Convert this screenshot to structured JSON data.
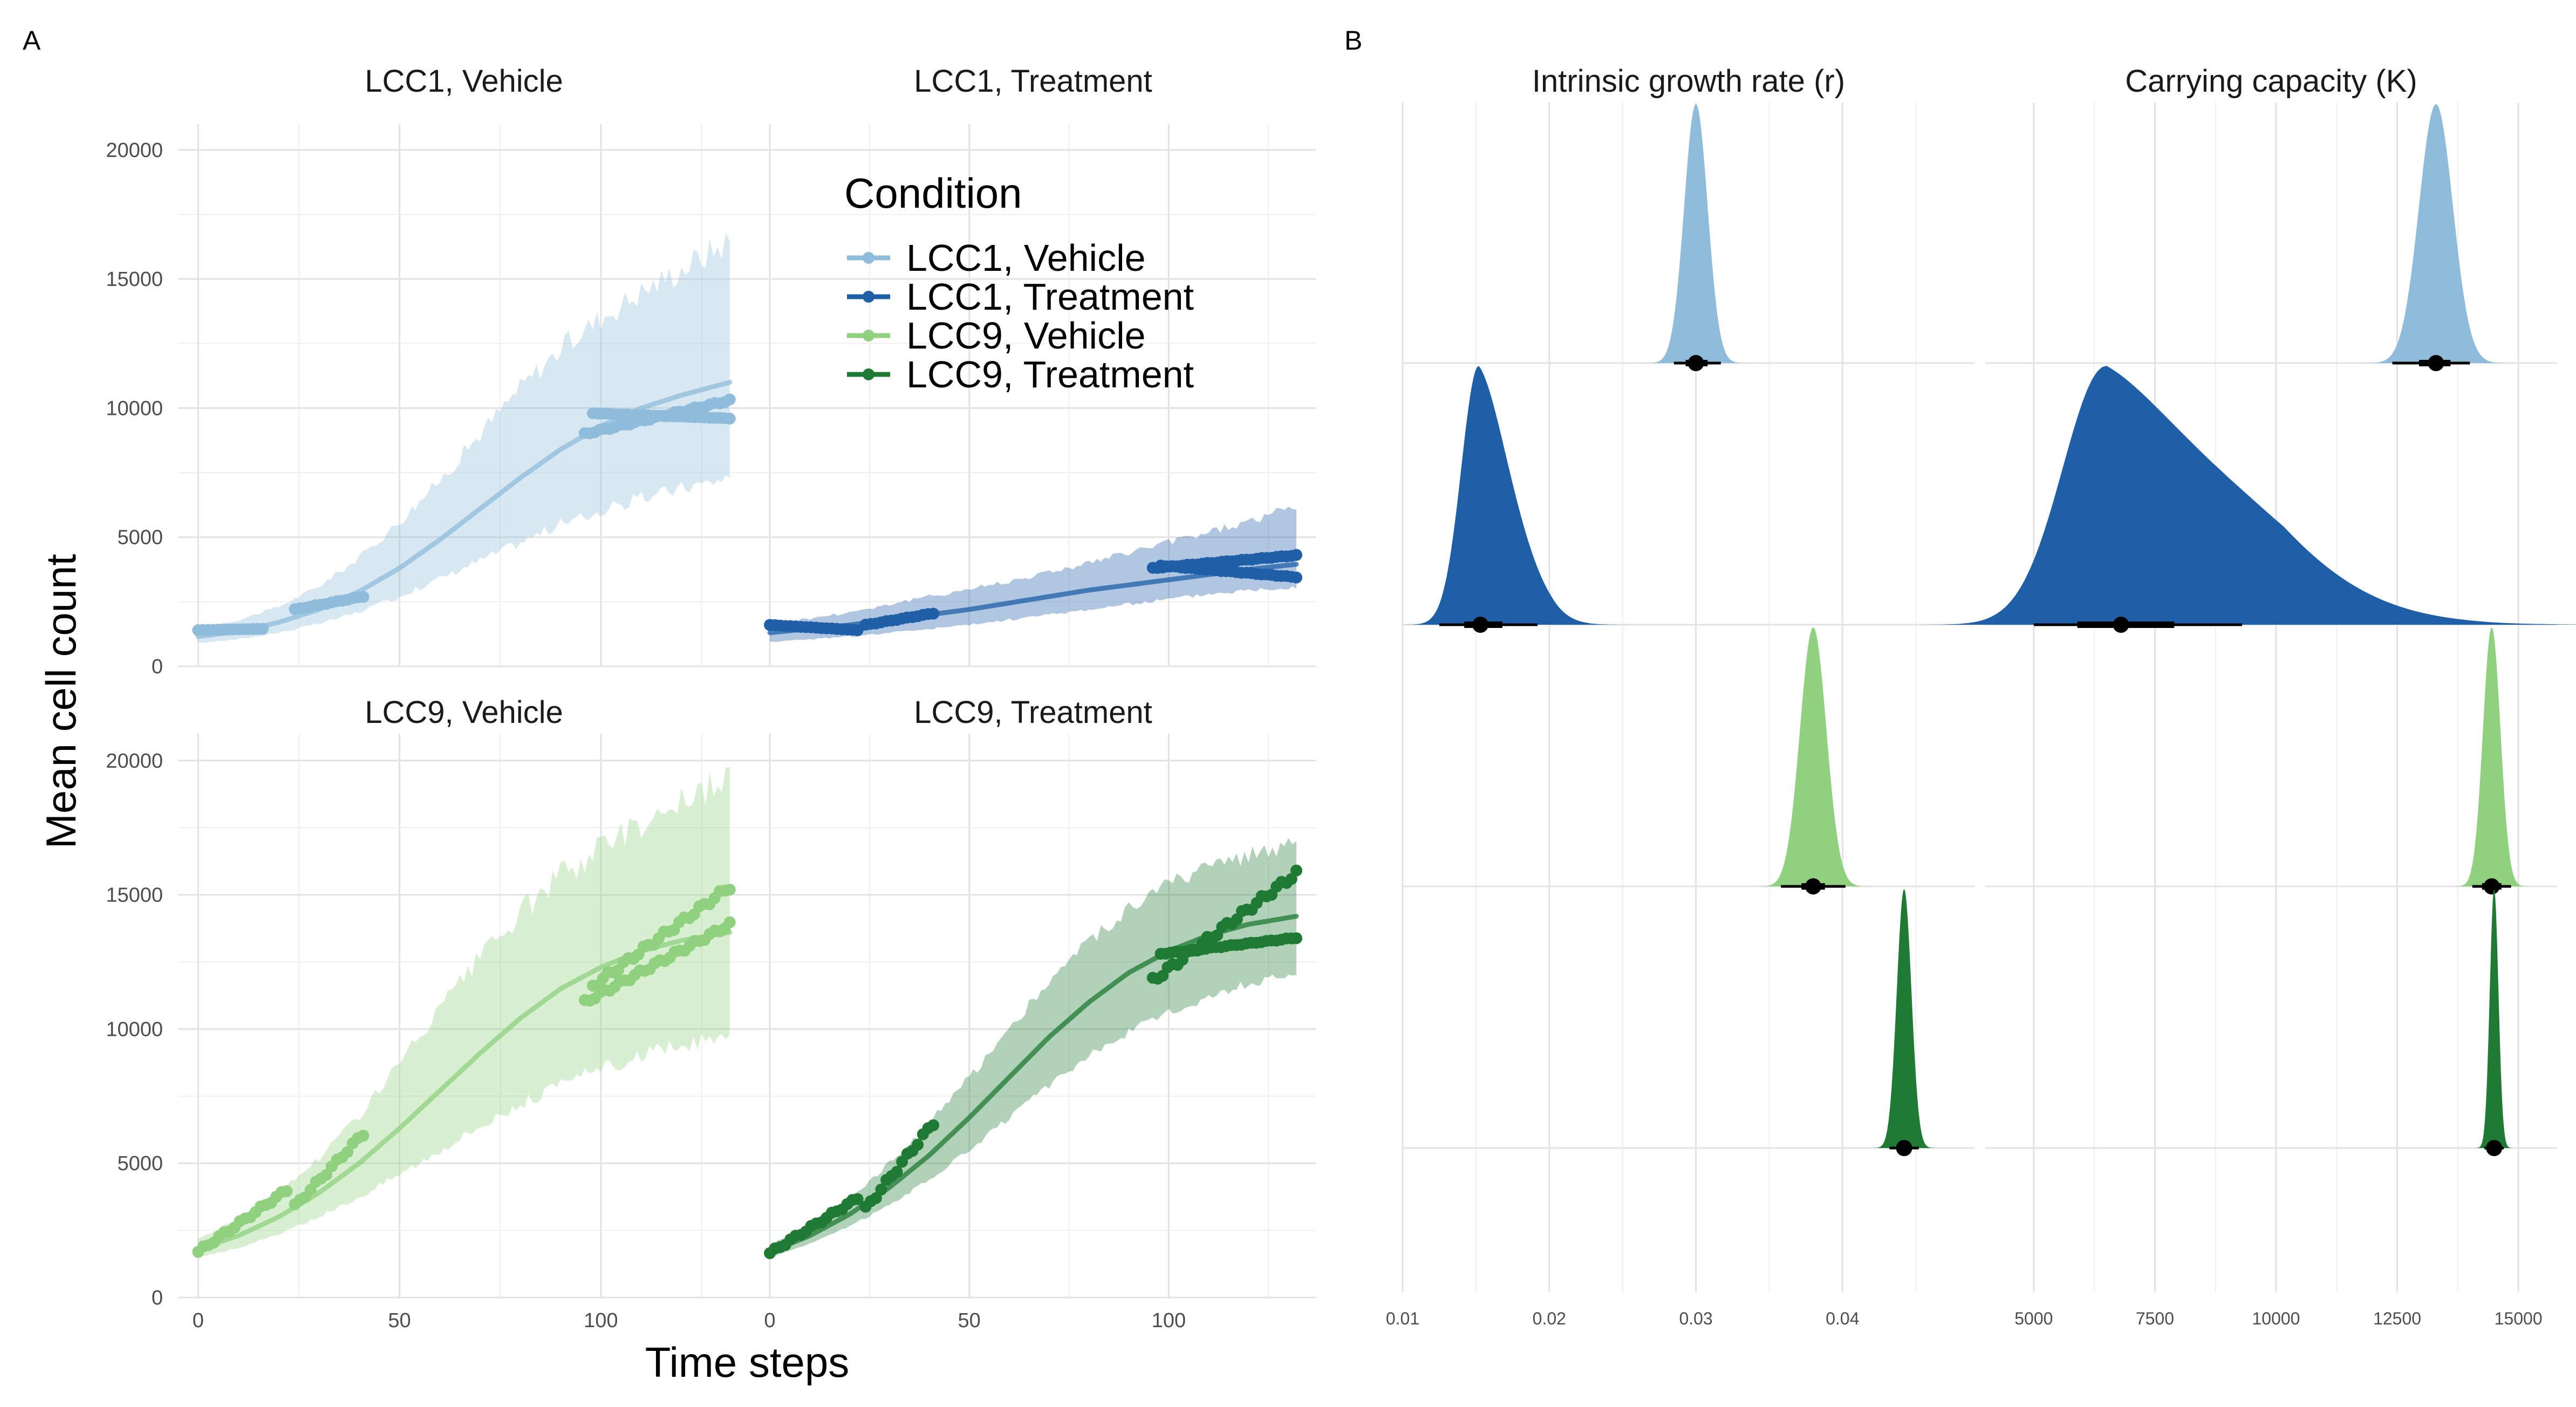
{
  "panels": {
    "a_label": "A",
    "b_label": "B"
  },
  "colors": {
    "LCC1, Vehicle": "#8fbcdb",
    "LCC1, Treatment": "#1f5fa8",
    "LCC9, Vehicle": "#8fd17f",
    "LCC9, Treatment": "#1f7a33"
  },
  "legend": {
    "title": "Condition",
    "entries": [
      "LCC1, Vehicle",
      "LCC1, Treatment",
      "LCC9, Vehicle",
      "LCC9, Treatment"
    ],
    "placement": "inside-top-right-of-panel-A"
  },
  "chart_data": [
    {
      "type": "line",
      "panel": "A",
      "facets": [
        "LCC1, Vehicle",
        "LCC1, Treatment",
        "LCC9, Vehicle",
        "LCC9, Treatment"
      ],
      "xlabel": "Time steps",
      "ylabel": "Mean cell count",
      "xlim": [
        -5,
        137
      ],
      "ylim": [
        0,
        21000
      ],
      "xticks": [
        0,
        50,
        100
      ],
      "yticks": [
        0,
        5000,
        10000,
        15000,
        20000
      ],
      "grid": true,
      "series": [
        {
          "name": "LCC1, Vehicle",
          "fit": {
            "x": [
              0,
              10,
              20,
              30,
              40,
              50,
              60,
              70,
              80,
              90,
              100,
              110,
              120,
              132
            ],
            "y": [
              1150,
              1350,
              1700,
              2200,
              2900,
              3800,
              4900,
              6100,
              7300,
              8400,
              9300,
              10000,
              10500,
              11000
            ]
          },
          "band": {
            "x": [
              0,
              10,
              20,
              30,
              40,
              50,
              60,
              70,
              80,
              90,
              100,
              110,
              120,
              132
            ],
            "lower": [
              900,
              1050,
              1300,
              1650,
              2100,
              2700,
              3400,
              4100,
              4800,
              5500,
              6000,
              6500,
              6900,
              7300
            ],
            "upper": [
              1450,
              1800,
              2300,
              3100,
              4200,
              5600,
              7200,
              9000,
              10800,
              12300,
              13500,
              14500,
              15400,
              16500
            ]
          },
          "observed_segments": [
            {
              "x0": 0,
              "x1": 16,
              "y0": 1400,
              "y1": 1450,
              "n": 14
            },
            {
              "x0": 24,
              "x1": 41,
              "y0": 2200,
              "y1": 2700,
              "n": 14
            },
            {
              "x0": 96,
              "x1": 132,
              "y0": 9000,
              "y1": 10300,
              "n": 30
            },
            {
              "x0": 98,
              "x1": 132,
              "y0": 9800,
              "y1": 9600,
              "n": 28
            }
          ]
        },
        {
          "name": "LCC1, Treatment",
          "fit": {
            "x": [
              0,
              10,
              20,
              30,
              40,
              50,
              60,
              70,
              80,
              90,
              100,
              110,
              120,
              132
            ],
            "y": [
              1300,
              1450,
              1600,
              1800,
              2000,
              2200,
              2450,
              2700,
              2950,
              3150,
              3350,
              3550,
              3750,
              3950
            ]
          },
          "band": {
            "x": [
              0,
              10,
              20,
              30,
              40,
              50,
              60,
              70,
              80,
              90,
              100,
              110,
              120,
              132
            ],
            "lower": [
              950,
              1050,
              1150,
              1300,
              1450,
              1600,
              1800,
              2000,
              2200,
              2400,
              2600,
              2800,
              2950,
              3100
            ]
          },
          "band_upper": [
            1650,
            1850,
            2100,
            2400,
            2700,
            3000,
            3300,
            3650,
            4000,
            4400,
            4800,
            5200,
            5600,
            6200
          ],
          "observed_segments": [
            {
              "x0": 0,
              "x1": 22,
              "y0": 1600,
              "y1": 1400,
              "n": 18
            },
            {
              "x0": 24,
              "x1": 41,
              "y0": 1600,
              "y1": 2050,
              "n": 14
            },
            {
              "x0": 96,
              "x1": 132,
              "y0": 3800,
              "y1": 4300,
              "n": 30
            },
            {
              "x0": 98,
              "x1": 132,
              "y0": 3900,
              "y1": 3450,
              "n": 28
            }
          ]
        },
        {
          "name": "LCC9, Vehicle",
          "fit": {
            "x": [
              0,
              10,
              20,
              30,
              40,
              50,
              60,
              70,
              80,
              90,
              100,
              110,
              120,
              132
            ],
            "y": [
              1800,
              2300,
              3000,
              3900,
              5000,
              6300,
              7700,
              9100,
              10400,
              11500,
              12300,
              12900,
              13300,
              13600
            ]
          },
          "band": {
            "x": [
              0,
              10,
              20,
              30,
              40,
              50,
              60,
              70,
              80,
              90,
              100,
              110,
              120,
              132
            ],
            "lower": [
              1500,
              1850,
              2350,
              3000,
              3750,
              4600,
              5500,
              6400,
              7200,
              7900,
              8500,
              9000,
              9400,
              9700
            ],
            "upper": [
              2200,
              2900,
              3900,
              5200,
              6800,
              8700,
              10700,
              12600,
              14300,
              15700,
              16800,
              17700,
              18500,
              19200
            ]
          },
          "observed_segments": [
            {
              "x0": 0,
              "x1": 22,
              "y0": 1700,
              "y1": 4000,
              "n": 18
            },
            {
              "x0": 24,
              "x1": 41,
              "y0": 3400,
              "y1": 6100,
              "n": 14
            },
            {
              "x0": 96,
              "x1": 132,
              "y0": 11000,
              "y1": 13900,
              "n": 30
            },
            {
              "x0": 98,
              "x1": 132,
              "y0": 11600,
              "y1": 15300,
              "n": 28
            }
          ]
        },
        {
          "name": "LCC9, Treatment",
          "fit": {
            "x": [
              0,
              10,
              20,
              30,
              40,
              50,
              60,
              70,
              80,
              90,
              100,
              110,
              120,
              132
            ],
            "y": [
              1700,
              2300,
              3100,
              4100,
              5300,
              6700,
              8200,
              9700,
              11000,
              12100,
              12900,
              13500,
              13900,
              14200
            ]
          },
          "band": {
            "x": [
              0,
              10,
              20,
              30,
              40,
              50,
              60,
              70,
              80,
              90,
              100,
              110,
              120,
              132
            ],
            "lower": [
              1500,
              2000,
              2650,
              3450,
              4400,
              5500,
              6700,
              7900,
              9000,
              9900,
              10600,
              11200,
              11700,
              12100
            ],
            "upper": [
              1950,
              2700,
              3700,
              5000,
              6500,
              8200,
              10000,
              11800,
              13300,
              14500,
              15400,
              16000,
              16500,
              16900
            ]
          },
          "observed_segments": [
            {
              "x0": 0,
              "x1": 22,
              "y0": 1650,
              "y1": 3700,
              "n": 18
            },
            {
              "x0": 24,
              "x1": 41,
              "y0": 3300,
              "y1": 6500,
              "n": 14
            },
            {
              "x0": 96,
              "x1": 132,
              "y0": 11800,
              "y1": 15800,
              "n": 30
            },
            {
              "x0": 98,
              "x1": 132,
              "y0": 12800,
              "y1": 13400,
              "n": 28
            }
          ]
        }
      ]
    },
    {
      "type": "area",
      "panel": "B",
      "subtype": "ridgeline-density",
      "facets": [
        "Intrinsic growth rate (r)",
        "Carrying capacity (K)"
      ],
      "rows": [
        "LCC1, Vehicle",
        "LCC1, Treatment",
        "LCC9, Vehicle",
        "LCC9, Treatment"
      ],
      "r": {
        "xlim": [
          0.01,
          0.049
        ],
        "xticks": [
          0.01,
          0.02,
          0.03,
          0.04
        ],
        "xtick_labels": [
          "0.01",
          "0.02",
          "0.03",
          "0.04"
        ],
        "estimates": [
          {
            "name": "LCC1, Vehicle",
            "mode": 0.03,
            "sd": 0.0008,
            "skew": 0,
            "median": 0.03,
            "ci66": [
              0.0293,
              0.0308
            ],
            "ci95": [
              0.0285,
              0.0317
            ]
          },
          {
            "name": "LCC1, Treatment",
            "mode": 0.0152,
            "sd": 0.0012,
            "skew": 0.6,
            "median": 0.0153,
            "ci66": [
              0.0142,
              0.0168
            ],
            "ci95": [
              0.0125,
              0.0192
            ]
          },
          {
            "name": "LCC9, Vehicle",
            "mode": 0.038,
            "sd": 0.0009,
            "skew": 0,
            "median": 0.038,
            "ci66": [
              0.0372,
              0.0388
            ],
            "ci95": [
              0.0358,
              0.0402
            ]
          },
          {
            "name": "LCC9, Treatment",
            "mode": 0.0442,
            "sd": 0.0005,
            "skew": 0,
            "median": 0.0442,
            "ci66": [
              0.0437,
              0.0447
            ],
            "ci95": [
              0.0432,
              0.0452
            ]
          }
        ]
      },
      "K": {
        "xlim": [
          4000,
          15800
        ],
        "xticks": [
          5000,
          7500,
          10000,
          12500,
          15000
        ],
        "xtick_labels": [
          "5000",
          "7500",
          "10000",
          "12500",
          "15000"
        ],
        "estimates": [
          {
            "name": "LCC1, Vehicle",
            "mode": 13300,
            "sd": 350,
            "skew": 0,
            "median": 13300,
            "ci66": [
              12950,
              13600
            ],
            "ci95": [
              12400,
              14000
            ]
          },
          {
            "name": "LCC1, Treatment",
            "mode": 6500,
            "sd": 900,
            "skew": 1.2,
            "median": 6800,
            "ci66": [
              5900,
              7900
            ],
            "ci95": [
              5000,
              9300
            ]
          },
          {
            "name": "LCC9, Vehicle",
            "mode": 14450,
            "sd": 180,
            "skew": 0,
            "median": 14450,
            "ci66": [
              14250,
              14650
            ],
            "ci95": [
              14050,
              14850
            ]
          },
          {
            "name": "LCC9, Treatment",
            "mode": 14500,
            "sd": 90,
            "skew": 0,
            "median": 14500,
            "ci66": [
              14400,
              14600
            ],
            "ci95": [
              14300,
              14700
            ]
          }
        ]
      }
    }
  ]
}
